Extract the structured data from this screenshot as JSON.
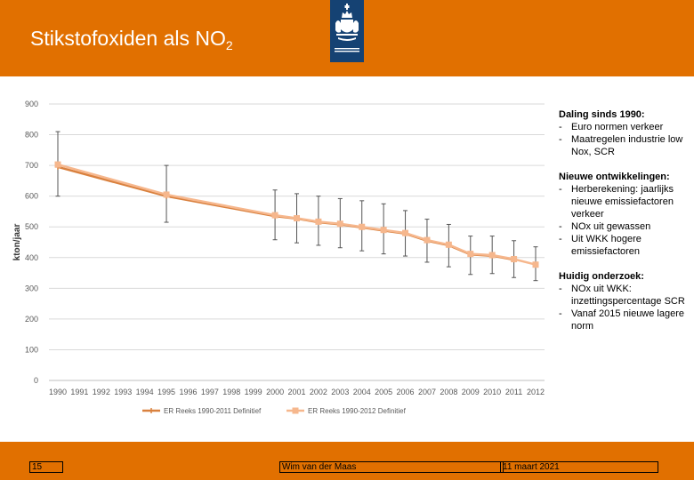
{
  "slide": {
    "title_main": "Stikstofoxiden als NO",
    "title_sub": "2",
    "footer": {
      "page": "15",
      "author": "Wim van der Maas",
      "date": "11 maart 2021"
    }
  },
  "colors": {
    "accent": "#e17000",
    "logo_bg": "#154273",
    "series1": "#d9813f",
    "series2": "#f6b78d",
    "error_bar": "#555555"
  },
  "icons": {
    "logo": "rijksoverheid-emblem-icon"
  },
  "notes": [
    {
      "heading": "Daling sinds 1990:",
      "items": [
        "Euro normen verkeer",
        "Maatregelen industrie low Nox, SCR"
      ]
    },
    {
      "heading": "Nieuwe ontwikkelingen:",
      "items": [
        "Herberekening: jaarlijks nieuwe emissiefactoren verkeer",
        "NOx uit gewassen",
        "Uit WKK hogere emissiefactoren"
      ]
    },
    {
      "heading": "Huidig onderzoek:",
      "items": [
        "NOx uit WKK: inzettingspercentage SCR",
        "Vanaf 2015 nieuwe lagere norm"
      ]
    }
  ],
  "chart_data": {
    "type": "line",
    "ylabel": "kton/jaar",
    "xlabel": "",
    "ylim": [
      0,
      900
    ],
    "yticks": [
      0,
      100,
      200,
      300,
      400,
      500,
      600,
      700,
      800,
      900
    ],
    "categories": [
      "1990",
      "1991",
      "1992",
      "1993",
      "1994",
      "1995",
      "1996",
      "1997",
      "1998",
      "1999",
      "2000",
      "2001",
      "2002",
      "2003",
      "2004",
      "2005",
      "2006",
      "2007",
      "2008",
      "2009",
      "2010",
      "2011",
      "2012"
    ],
    "grid": "horizontal",
    "legend_position": "bottom",
    "series": [
      {
        "name": "ER Reeks 1990-2011 Definitief",
        "color": "#d9813f",
        "marker": "plus",
        "points": [
          [
            1990,
            695
          ],
          [
            1995,
            600
          ],
          [
            2000,
            535
          ],
          [
            2001,
            527
          ],
          [
            2002,
            515
          ],
          [
            2003,
            508
          ],
          [
            2004,
            498
          ],
          [
            2005,
            488
          ],
          [
            2006,
            478
          ],
          [
            2007,
            455
          ],
          [
            2008,
            440
          ],
          [
            2009,
            410
          ],
          [
            2010,
            406
          ],
          [
            2011,
            393
          ]
        ]
      },
      {
        "name": "ER Reeks 1990-2012 Definitief",
        "color": "#f6b78d",
        "marker": "square",
        "points": [
          [
            1990,
            703
          ],
          [
            1995,
            605
          ],
          [
            2000,
            538
          ],
          [
            2001,
            528
          ],
          [
            2002,
            517
          ],
          [
            2003,
            510
          ],
          [
            2004,
            500
          ],
          [
            2005,
            490
          ],
          [
            2006,
            480
          ],
          [
            2007,
            457
          ],
          [
            2008,
            442
          ],
          [
            2009,
            412
          ],
          [
            2010,
            408
          ],
          [
            2011,
            395
          ],
          [
            2012,
            377
          ]
        ]
      }
    ],
    "error_bars": [
      [
        1990,
        600,
        810
      ],
      [
        1995,
        515,
        700
      ],
      [
        2000,
        458,
        620
      ],
      [
        2001,
        448,
        608
      ],
      [
        2002,
        440,
        600
      ],
      [
        2003,
        432,
        592
      ],
      [
        2004,
        422,
        585
      ],
      [
        2005,
        412,
        575
      ],
      [
        2006,
        405,
        553
      ],
      [
        2007,
        385,
        525
      ],
      [
        2008,
        370,
        508
      ],
      [
        2009,
        345,
        470
      ],
      [
        2010,
        348,
        470
      ],
      [
        2011,
        335,
        455
      ],
      [
        2012,
        325,
        435
      ]
    ]
  }
}
